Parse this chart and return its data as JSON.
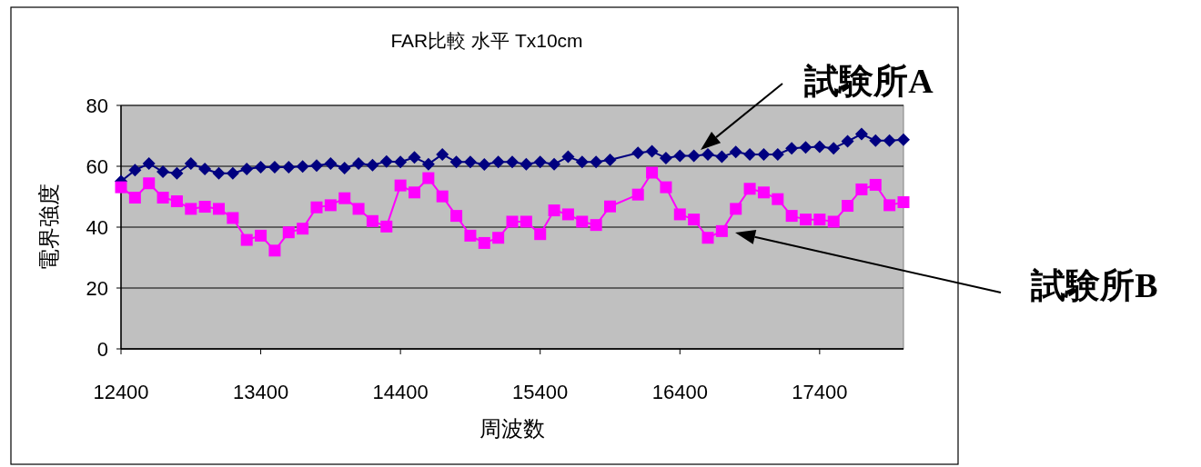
{
  "chart_data": {
    "type": "line",
    "title": "FAR比較 水平 Tx10cm",
    "xlabel": "周波数",
    "ylabel": "電界強度",
    "xlim": [
      12400,
      18000
    ],
    "xticks": [
      12400,
      13400,
      14400,
      15400,
      16400,
      17400
    ],
    "ylim": [
      0,
      80
    ],
    "yticks": [
      0,
      20,
      40,
      60,
      80
    ],
    "grid": "y",
    "line_style": "solid",
    "x": [
      12400,
      12500,
      12600,
      12700,
      12800,
      12900,
      13000,
      13100,
      13200,
      13300,
      13400,
      13500,
      13600,
      13700,
      13800,
      13900,
      14000,
      14100,
      14200,
      14300,
      14400,
      14500,
      14600,
      14700,
      14800,
      14900,
      15000,
      15100,
      15200,
      15300,
      15400,
      15500,
      15600,
      15700,
      15800,
      15900,
      16100,
      16200,
      16300,
      16400,
      16500,
      16600,
      16700,
      16800,
      16900,
      17000,
      17100,
      17200,
      17300,
      17400,
      17500,
      17600,
      17700,
      17800,
      17900,
      18000
    ],
    "series": [
      {
        "color": "#000080",
        "marker": "diamond",
        "values": [
          55.1,
          58.7,
          60.9,
          58.2,
          57.7,
          60.9,
          59.1,
          57.7,
          57.7,
          59.1,
          59.7,
          59.7,
          59.7,
          59.9,
          60.2,
          60.9,
          59.4,
          60.9,
          60.4,
          61.6,
          61.4,
          62.9,
          60.7,
          63.9,
          61.4,
          61.4,
          60.6,
          61.4,
          61.4,
          60.7,
          61.4,
          60.7,
          63.1,
          61.4,
          61.4,
          62.1,
          64.4,
          64.9,
          62.7,
          63.4,
          63.4,
          63.9,
          63.1,
          64.7,
          63.9,
          63.9,
          63.9,
          65.9,
          66.2,
          66.4,
          65.9,
          68.2,
          70.6,
          68.4,
          68.4,
          68.7
        ]
      },
      {
        "color": "#ff00ff",
        "marker": "square",
        "values": [
          53.1,
          49.7,
          54.4,
          49.7,
          48.5,
          46.0,
          46.7,
          46.0,
          43.0,
          35.8,
          37.2,
          32.3,
          38.3,
          39.5,
          46.5,
          47.2,
          49.5,
          46.0,
          42.0,
          40.2,
          53.7,
          51.4,
          56.1,
          50.1,
          43.7,
          37.2,
          34.8,
          36.5,
          41.8,
          41.8,
          37.7,
          45.5,
          44.2,
          41.8,
          40.7,
          46.8,
          50.7,
          57.9,
          53.1,
          44.2,
          42.5,
          36.5,
          38.7,
          46.0,
          52.6,
          51.4,
          49.2,
          43.7,
          42.5,
          42.5,
          41.8,
          47.0,
          52.4,
          53.9,
          47.2,
          48.2
        ]
      }
    ],
    "annotations": [
      "試験所A",
      "試験所B"
    ]
  }
}
